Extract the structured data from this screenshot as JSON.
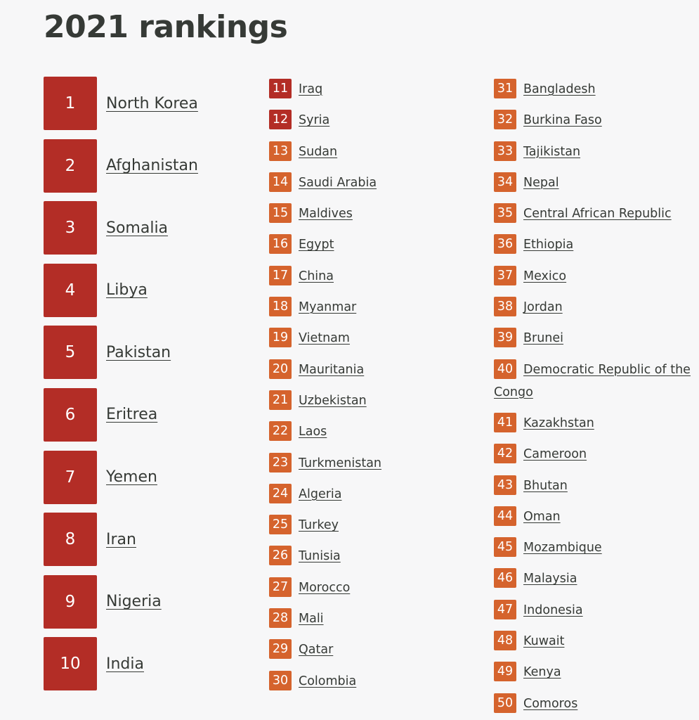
{
  "title": "2021 rankings",
  "colors": {
    "top_badge": "#b32d26",
    "mid_badge": "#d5632d",
    "text": "#363a36",
    "background": "#f7f7f8"
  },
  "top_ten": [
    {
      "rank": "1",
      "country": "North Korea"
    },
    {
      "rank": "2",
      "country": "Afghanistan"
    },
    {
      "rank": "3",
      "country": "Somalia"
    },
    {
      "rank": "4",
      "country": "Libya"
    },
    {
      "rank": "5",
      "country": "Pakistan"
    },
    {
      "rank": "6",
      "country": "Eritrea"
    },
    {
      "rank": "7",
      "country": "Yemen"
    },
    {
      "rank": "8",
      "country": "Iran"
    },
    {
      "rank": "9",
      "country": "Nigeria"
    },
    {
      "rank": "10",
      "country": "India"
    }
  ],
  "column_two": [
    {
      "rank": "11",
      "country": "Iraq",
      "dark": true
    },
    {
      "rank": "12",
      "country": "Syria",
      "dark": true
    },
    {
      "rank": "13",
      "country": "Sudan"
    },
    {
      "rank": "14",
      "country": "Saudi Arabia"
    },
    {
      "rank": "15",
      "country": "Maldives"
    },
    {
      "rank": "16",
      "country": "Egypt"
    },
    {
      "rank": "17",
      "country": "China"
    },
    {
      "rank": "18",
      "country": "Myanmar"
    },
    {
      "rank": "19",
      "country": "Vietnam"
    },
    {
      "rank": "20",
      "country": "Mauritania"
    },
    {
      "rank": "21",
      "country": "Uzbekistan"
    },
    {
      "rank": "22",
      "country": "Laos"
    },
    {
      "rank": "23",
      "country": "Turkmenistan"
    },
    {
      "rank": "24",
      "country": "Algeria"
    },
    {
      "rank": "25",
      "country": "Turkey"
    },
    {
      "rank": "26",
      "country": "Tunisia"
    },
    {
      "rank": "27",
      "country": "Morocco"
    },
    {
      "rank": "28",
      "country": "Mali"
    },
    {
      "rank": "29",
      "country": "Qatar"
    },
    {
      "rank": "30",
      "country": "Colombia"
    }
  ],
  "column_three": [
    {
      "rank": "31",
      "country": "Bangladesh"
    },
    {
      "rank": "32",
      "country": "Burkina Faso"
    },
    {
      "rank": "33",
      "country": "Tajikistan"
    },
    {
      "rank": "34",
      "country": "Nepal"
    },
    {
      "rank": "35",
      "country": "Central African Republic"
    },
    {
      "rank": "36",
      "country": "Ethiopia"
    },
    {
      "rank": "37",
      "country": "Mexico"
    },
    {
      "rank": "38",
      "country": "Jordan"
    },
    {
      "rank": "39",
      "country": "Brunei"
    },
    {
      "rank": "40",
      "country": "Democratic Republic of the Congo"
    },
    {
      "rank": "41",
      "country": "Kazakhstan"
    },
    {
      "rank": "42",
      "country": "Cameroon"
    },
    {
      "rank": "43",
      "country": "Bhutan"
    },
    {
      "rank": "44",
      "country": "Oman"
    },
    {
      "rank": "45",
      "country": "Mozambique"
    },
    {
      "rank": "46",
      "country": "Malaysia"
    },
    {
      "rank": "47",
      "country": "Indonesia"
    },
    {
      "rank": "48",
      "country": "Kuwait"
    },
    {
      "rank": "49",
      "country": "Kenya"
    },
    {
      "rank": "50",
      "country": "Comoros"
    }
  ]
}
